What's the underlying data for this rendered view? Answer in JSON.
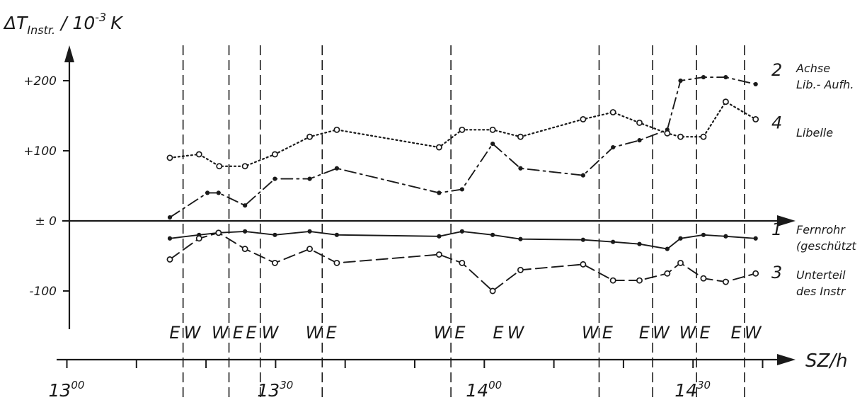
{
  "chart_data": {
    "type": "line",
    "title": "",
    "ylabel": "ΔT",
    "ylabel_sub": "Instr.",
    "ylabel_unit_prefix": "/ 10",
    "ylabel_unit_exp": "-3",
    "ylabel_unit_suffix": "K",
    "xlabel": "SZ/h",
    "xlim": [
      780,
      884
    ],
    "ylim": [
      -150,
      250
    ],
    "y_ticks": [
      {
        "value": 200,
        "label": "+200"
      },
      {
        "value": 100,
        "label": "+100"
      },
      {
        "value": 0,
        "label": "± 0"
      },
      {
        "value": -100,
        "label": "-100"
      }
    ],
    "x_ticks": [
      780,
      790,
      800,
      810,
      820,
      830,
      840,
      850,
      860,
      870,
      880
    ],
    "x_tick_labels": [
      {
        "value": 780,
        "hh": "13",
        "mm": "00"
      },
      {
        "value": 810,
        "hh": "13",
        "mm": "30"
      },
      {
        "value": 840,
        "hh": "14",
        "mm": "00"
      },
      {
        "value": 870,
        "hh": "14",
        "mm": "30"
      }
    ],
    "dividers": [
      796.7,
      803.3,
      807.8,
      816.7,
      835.2,
      856.5,
      864.2,
      870.5,
      877.4
    ],
    "position_labels": [
      {
        "x": 795.5,
        "text": "E"
      },
      {
        "x": 798.0,
        "text": "W"
      },
      {
        "x": 802.0,
        "text": "W"
      },
      {
        "x": 804.6,
        "text": "E"
      },
      {
        "x": 806.5,
        "text": "E"
      },
      {
        "x": 809.2,
        "text": "W"
      },
      {
        "x": 815.5,
        "text": "W"
      },
      {
        "x": 818.0,
        "text": "E"
      },
      {
        "x": 833.9,
        "text": "W"
      },
      {
        "x": 836.5,
        "text": "E"
      },
      {
        "x": 842.0,
        "text": "E"
      },
      {
        "x": 844.5,
        "text": "W"
      },
      {
        "x": 855.2,
        "text": "W"
      },
      {
        "x": 857.7,
        "text": "E"
      },
      {
        "x": 863.0,
        "text": "E"
      },
      {
        "x": 865.4,
        "text": "W"
      },
      {
        "x": 869.2,
        "text": "W"
      },
      {
        "x": 871.7,
        "text": "E"
      },
      {
        "x": 876.2,
        "text": "E"
      },
      {
        "x": 878.6,
        "text": "W"
      }
    ],
    "series": [
      {
        "id": "2",
        "label_lines": [
          "Achse",
          "Lib.- Aufh."
        ],
        "style": "dashdot",
        "marker": "dot",
        "x": [
          794.8,
          800.2,
          801.8,
          805.6,
          809.9,
          814.9,
          818.8,
          833.5,
          836.8,
          841.2,
          845.2,
          854.2,
          858.5,
          862.3,
          866.3,
          868.2,
          871.5,
          874.7,
          879.0
        ],
        "y": [
          5,
          40,
          40,
          22,
          60,
          60,
          75,
          40,
          45,
          110,
          75,
          65,
          105,
          115,
          130,
          200,
          205,
          205,
          195
        ]
      },
      {
        "id": "4",
        "label_lines": [
          "Libelle"
        ],
        "style": "dotted",
        "marker": "circle",
        "x": [
          794.8,
          799.0,
          801.9,
          805.6,
          809.9,
          814.9,
          818.8,
          833.5,
          836.8,
          841.2,
          845.2,
          854.2,
          858.5,
          862.3,
          866.3,
          868.2,
          871.5,
          874.7,
          879.0
        ],
        "y": [
          90,
          95,
          78,
          78,
          95,
          120,
          130,
          105,
          130,
          130,
          120,
          145,
          155,
          140,
          125,
          120,
          120,
          170,
          145
        ]
      },
      {
        "id": "1",
        "label_lines": [
          "Fernrohr",
          "(geschützt"
        ],
        "style": "solid",
        "marker": "dot",
        "x": [
          794.8,
          799.0,
          801.8,
          805.6,
          809.9,
          814.9,
          818.8,
          833.5,
          836.8,
          841.2,
          845.2,
          854.2,
          858.5,
          862.3,
          866.3,
          868.2,
          871.5,
          874.7,
          879.0
        ],
        "y": [
          -25,
          -20,
          -17,
          -15,
          -20,
          -15,
          -20,
          -22,
          -15,
          -20,
          -26,
          -27,
          -30,
          -33,
          -40,
          -25,
          -20,
          -22,
          -25
        ]
      },
      {
        "id": "3",
        "label_lines": [
          "Unterteil",
          "des Instr"
        ],
        "style": "dashed",
        "marker": "circle",
        "x": [
          794.8,
          799.0,
          801.8,
          805.6,
          809.9,
          814.9,
          818.8,
          833.5,
          836.8,
          841.2,
          845.2,
          854.2,
          858.5,
          862.3,
          866.3,
          868.2,
          871.5,
          874.7,
          879.0
        ],
        "y": [
          -55,
          -25,
          -17,
          -40,
          -60,
          -40,
          -60,
          -48,
          -60,
          -100,
          -70,
          -62,
          -85,
          -85,
          -75,
          -60,
          -82,
          -87,
          -75
        ]
      }
    ]
  }
}
